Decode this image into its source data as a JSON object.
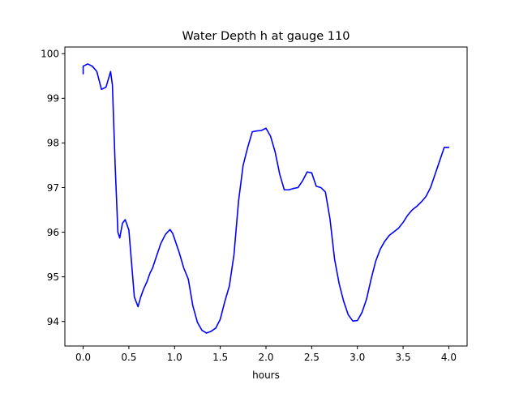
{
  "chart_data": {
    "type": "line",
    "title": "Water Depth h at gauge 110",
    "xlabel": "hours",
    "ylabel": "",
    "xlim": [
      -0.2,
      4.2
    ],
    "ylim": [
      93.45,
      100.15
    ],
    "xticks": [
      0.0,
      0.5,
      1.0,
      1.5,
      2.0,
      2.5,
      3.0,
      3.5,
      4.0
    ],
    "xtick_labels": [
      "0.0",
      "0.5",
      "1.0",
      "1.5",
      "2.0",
      "2.5",
      "3.0",
      "3.5",
      "4.0"
    ],
    "yticks": [
      94,
      95,
      96,
      97,
      98,
      99,
      100
    ],
    "ytick_labels": [
      "94",
      "95",
      "96",
      "97",
      "98",
      "99",
      "100"
    ],
    "grid": false,
    "series": [
      {
        "color": "#0000ff",
        "x": [
          0.0,
          0.0,
          0.05,
          0.1,
          0.15,
          0.2,
          0.25,
          0.3,
          0.32,
          0.35,
          0.38,
          0.4,
          0.43,
          0.46,
          0.5,
          0.53,
          0.56,
          0.6,
          0.63,
          0.66,
          0.7,
          0.73,
          0.76,
          0.8,
          0.85,
          0.9,
          0.95,
          0.98,
          1.0,
          1.05,
          1.1,
          1.15,
          1.2,
          1.25,
          1.3,
          1.35,
          1.4,
          1.45,
          1.5,
          1.55,
          1.6,
          1.65,
          1.7,
          1.75,
          1.8,
          1.85,
          1.9,
          1.95,
          2.0,
          2.05,
          2.1,
          2.15,
          2.2,
          2.25,
          2.3,
          2.35,
          2.4,
          2.45,
          2.5,
          2.55,
          2.6,
          2.65,
          2.7,
          2.75,
          2.8,
          2.85,
          2.9,
          2.95,
          3.0,
          3.05,
          3.1,
          3.15,
          3.2,
          3.25,
          3.3,
          3.35,
          3.4,
          3.45,
          3.5,
          3.55,
          3.6,
          3.65,
          3.7,
          3.75,
          3.8,
          3.85,
          3.9,
          3.95,
          4.0
        ],
        "y": [
          99.55,
          99.72,
          99.77,
          99.72,
          99.6,
          99.2,
          99.25,
          99.6,
          99.3,
          97.5,
          96.0,
          95.87,
          96.2,
          96.28,
          96.05,
          95.3,
          94.55,
          94.33,
          94.55,
          94.72,
          94.9,
          95.08,
          95.2,
          95.45,
          95.75,
          95.95,
          96.06,
          95.97,
          95.85,
          95.55,
          95.2,
          94.95,
          94.35,
          93.98,
          93.8,
          93.74,
          93.78,
          93.85,
          94.05,
          94.45,
          94.8,
          95.5,
          96.7,
          97.5,
          97.9,
          98.25,
          98.27,
          98.28,
          98.33,
          98.15,
          97.8,
          97.3,
          96.95,
          96.95,
          96.98,
          97.0,
          97.15,
          97.35,
          97.33,
          97.03,
          97.0,
          96.9,
          96.3,
          95.4,
          94.85,
          94.45,
          94.15,
          94.01,
          94.02,
          94.2,
          94.5,
          94.95,
          95.35,
          95.62,
          95.8,
          95.93,
          96.01,
          96.09,
          96.22,
          96.38,
          96.5,
          96.58,
          96.68,
          96.8,
          97.0,
          97.3,
          97.6,
          97.9,
          97.9
        ]
      }
    ]
  }
}
